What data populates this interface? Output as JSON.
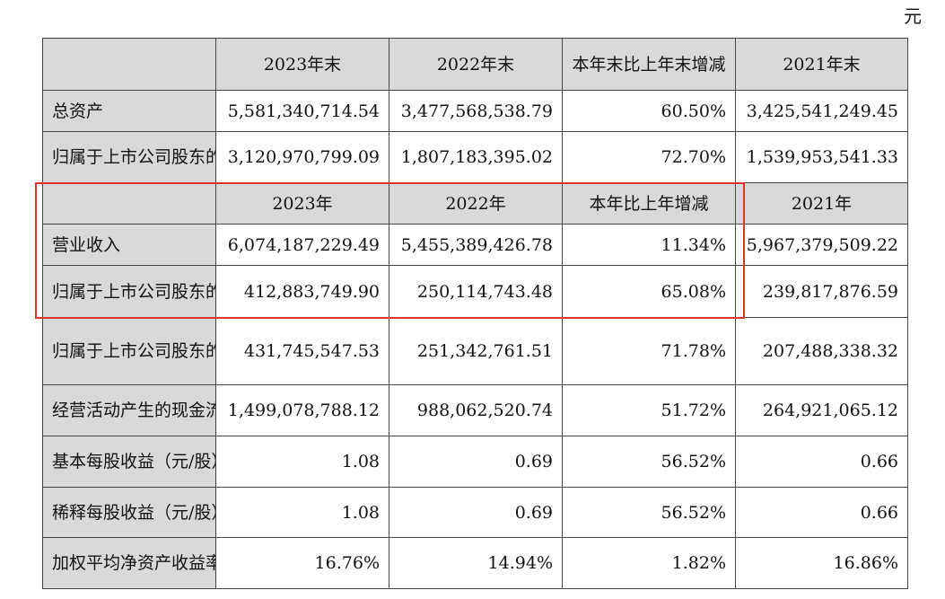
{
  "unit": "元",
  "balance_header": {
    "label": "",
    "columns": [
      "2023年末",
      "2022年末",
      "本年末比上年末增减",
      "2021年末"
    ]
  },
  "balance_rows": [
    {
      "label": "总资产",
      "values": [
        "5,581,340,714.54",
        "3,477,568,538.79",
        "60.50%",
        "3,425,541,249.45"
      ]
    },
    {
      "label": "归属于上市公司股东的净资产",
      "values": [
        "3,120,970,799.09",
        "1,807,183,395.02",
        "72.70%",
        "1,539,953,541.33"
      ]
    }
  ],
  "income_header": {
    "label": "",
    "columns": [
      "2023年",
      "2022年",
      "本年比上年增减",
      "2021年"
    ]
  },
  "income_rows": [
    {
      "label": "营业收入",
      "values": [
        "6,074,187,229.49",
        "5,455,389,426.78",
        "11.34%",
        "5,967,379,509.22"
      ]
    },
    {
      "label": "归属于上市公司股东的净利润",
      "values": [
        "412,883,749.90",
        "250,114,743.48",
        "65.08%",
        "239,817,876.59"
      ]
    },
    {
      "label": "归属于上市公司股东的扣除非经常性损益的净利润",
      "values": [
        "431,745,547.53",
        "251,342,761.51",
        "71.78%",
        "207,488,338.32"
      ]
    },
    {
      "label": "经营活动产生的现金流量净额",
      "values": [
        "1,499,078,788.12",
        "988,062,520.74",
        "51.72%",
        "264,921,065.12"
      ]
    },
    {
      "label": "基本每股收益（元/股）",
      "values": [
        "1.08",
        "0.69",
        "56.52%",
        "0.66"
      ]
    },
    {
      "label": "稀释每股收益（元/股）",
      "values": [
        "1.08",
        "0.69",
        "56.52%",
        "0.66"
      ]
    },
    {
      "label": "加权平均净资产收益率",
      "values": [
        "16.76%",
        "14.94%",
        "1.82%",
        "16.86%"
      ]
    }
  ],
  "colors": {
    "header_fill": "#d9d9d9",
    "border": "#444444",
    "highlight": "#e0332a"
  }
}
